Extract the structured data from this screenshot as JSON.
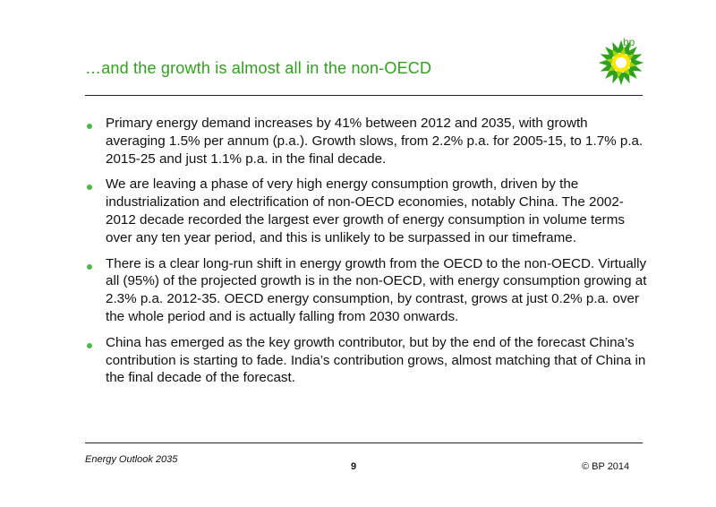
{
  "header": {
    "title": "…and the growth is almost all in the non-OECD",
    "logo_text": "bp",
    "logo_icon": "bp-helios-logo-icon",
    "accent_color": "#2ea21b"
  },
  "bullets": [
    "Primary energy demand increases by 41% between 2012 and 2035, with growth averaging 1.5% per annum (p.a.). Growth slows, from 2.2% p.a. for 2005-15, to 1.7% p.a. 2015-25 and just 1.1% p.a. in the final decade.",
    "We are leaving a phase of very high energy consumption growth, driven by the industrialization and electrification of non-OECD economies, notably China. The 2002-2012 decade recorded the largest ever growth of energy consumption in volume terms over any ten year period, and this is unlikely to be surpassed in our timeframe.",
    "There is a clear long-run shift in energy growth from the OECD to the non-OECD. Virtually all (95%) of the projected growth is in the non-OECD, with energy consumption growing at 2.3% p.a. 2012-35. OECD energy consumption, by contrast, grows at just 0.2% p.a. over the whole period and is actually falling from 2030 onwards.",
    "China has emerged as the key growth contributor, but by the end of the forecast China’s contribution is starting to fade. India’s contribution grows, almost matching that of China in the final decade of the forecast."
  ],
  "footer": {
    "publication": "Energy Outlook 2035",
    "page_number": "9",
    "copyright": "© BP 2014"
  }
}
